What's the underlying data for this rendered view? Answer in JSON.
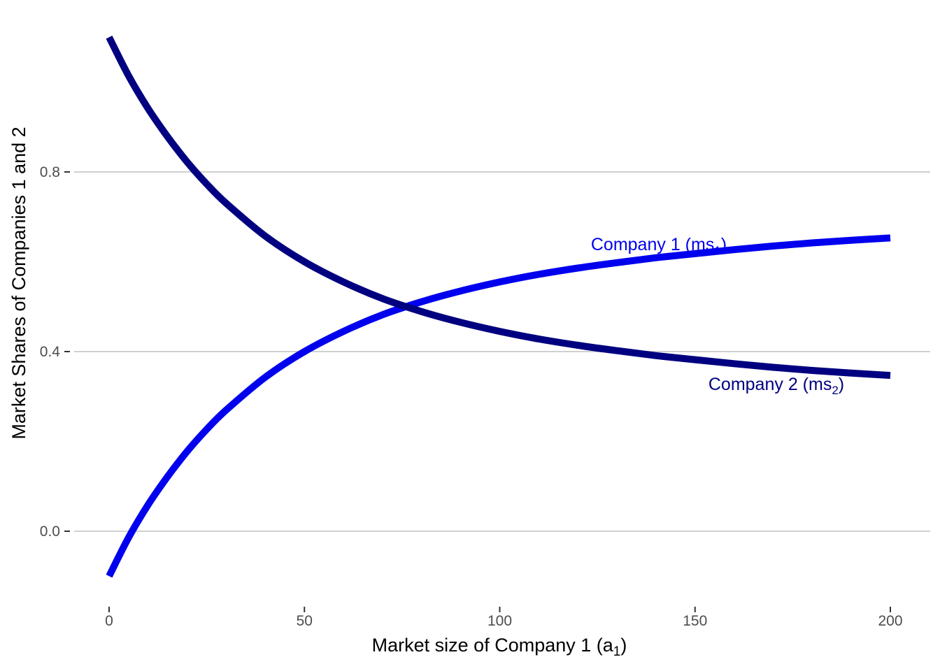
{
  "chart_data": {
    "type": "line",
    "xlabel": "Market size of Company 1  (a",
    "xlabel_sub": "1",
    "xlabel_end": ")",
    "ylabel": "Market Shares of Companies 1 and 2",
    "xlim": [
      0,
      200
    ],
    "ylim": [
      -0.1,
      1.1
    ],
    "x_ticks": [
      0,
      50,
      100,
      150,
      200
    ],
    "x_tick_labels": [
      "0",
      "50",
      "100",
      "150",
      "200"
    ],
    "y_ticks": [
      0.0,
      0.4,
      0.8
    ],
    "y_tick_labels": [
      "0.0",
      "0.4",
      "0.8"
    ],
    "grid": "horizontal major",
    "legend": "none",
    "x": [
      0,
      5,
      10,
      15,
      20,
      25,
      30,
      40,
      50,
      60,
      70,
      80,
      90,
      100,
      110,
      120,
      130,
      140,
      150,
      160,
      170,
      180,
      190,
      200
    ],
    "series": [
      {
        "color": "#0000ee",
        "label_prefix": "Company 1 (ms",
        "label_sub": "1",
        "label_suffix": ")",
        "values": [
          -0.1,
          -0.014,
          0.059,
          0.122,
          0.178,
          0.227,
          0.27,
          0.343,
          0.4,
          0.445,
          0.482,
          0.511,
          0.535,
          0.555,
          0.572,
          0.586,
          0.598,
          0.609,
          0.618,
          0.627,
          0.635,
          0.642,
          0.648,
          0.653
        ]
      },
      {
        "color": "#000080",
        "label_prefix": "Company 2 (ms",
        "label_sub": "2",
        "label_suffix": ")",
        "values": [
          1.1,
          1.014,
          0.941,
          0.878,
          0.822,
          0.773,
          0.73,
          0.657,
          0.6,
          0.555,
          0.518,
          0.489,
          0.465,
          0.445,
          0.428,
          0.414,
          0.402,
          0.391,
          0.382,
          0.373,
          0.365,
          0.358,
          0.352,
          0.347
        ]
      }
    ]
  }
}
